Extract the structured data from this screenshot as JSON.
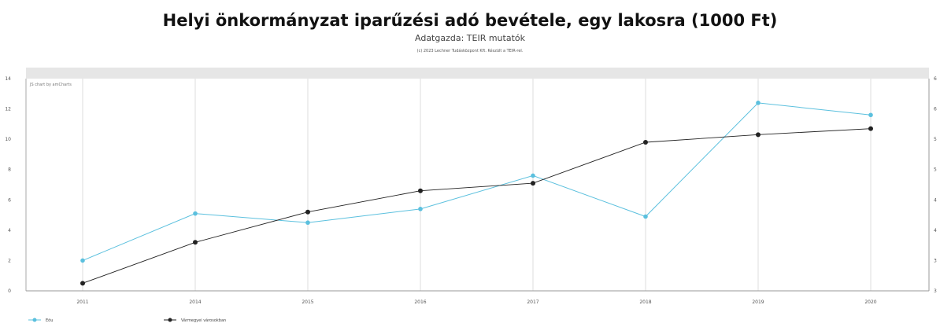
{
  "title": "Helyi önkormányzat iparűzési adó bevétele, egy lakosra (1000 Ft)",
  "subtitle": "Adatgazda: TEIR mutatók",
  "credit": "(c) 2023 Lechner Tudásközpont Kft. Készült a TEIR-rel.",
  "watermark": "JS chart by amCharts",
  "colors": {
    "series1": "#5bc0de",
    "series2": "#222222",
    "header_band": "#e6e6e6",
    "grid": "#dddddd"
  },
  "chart_data": {
    "type": "line",
    "title": "Helyi önkormányzat iparűzési adó bevétele, egy lakosra (1000 Ft)",
    "categories": [
      "2011",
      "2014",
      "2015",
      "2016",
      "2017",
      "2018",
      "2019",
      "2020"
    ],
    "ylim": [
      0,
      14
    ],
    "yticks": [
      "0",
      "2",
      "4",
      "6",
      "8",
      "10",
      "12",
      "14"
    ],
    "y2ticks": [
      "3",
      "3",
      "4",
      "4",
      "5",
      "5",
      "6",
      "6"
    ],
    "grid": true,
    "legend_position": "bottom-left",
    "series": [
      {
        "name": "Eöu",
        "color": "#5bc0de",
        "values": [
          2.0,
          5.1,
          4.5,
          5.4,
          7.6,
          4.9,
          12.4,
          11.6
        ]
      },
      {
        "name": "Vármegyei városokban",
        "color": "#222222",
        "values": [
          0.5,
          3.2,
          5.2,
          6.6,
          7.1,
          9.8,
          10.3,
          10.7
        ]
      }
    ]
  }
}
